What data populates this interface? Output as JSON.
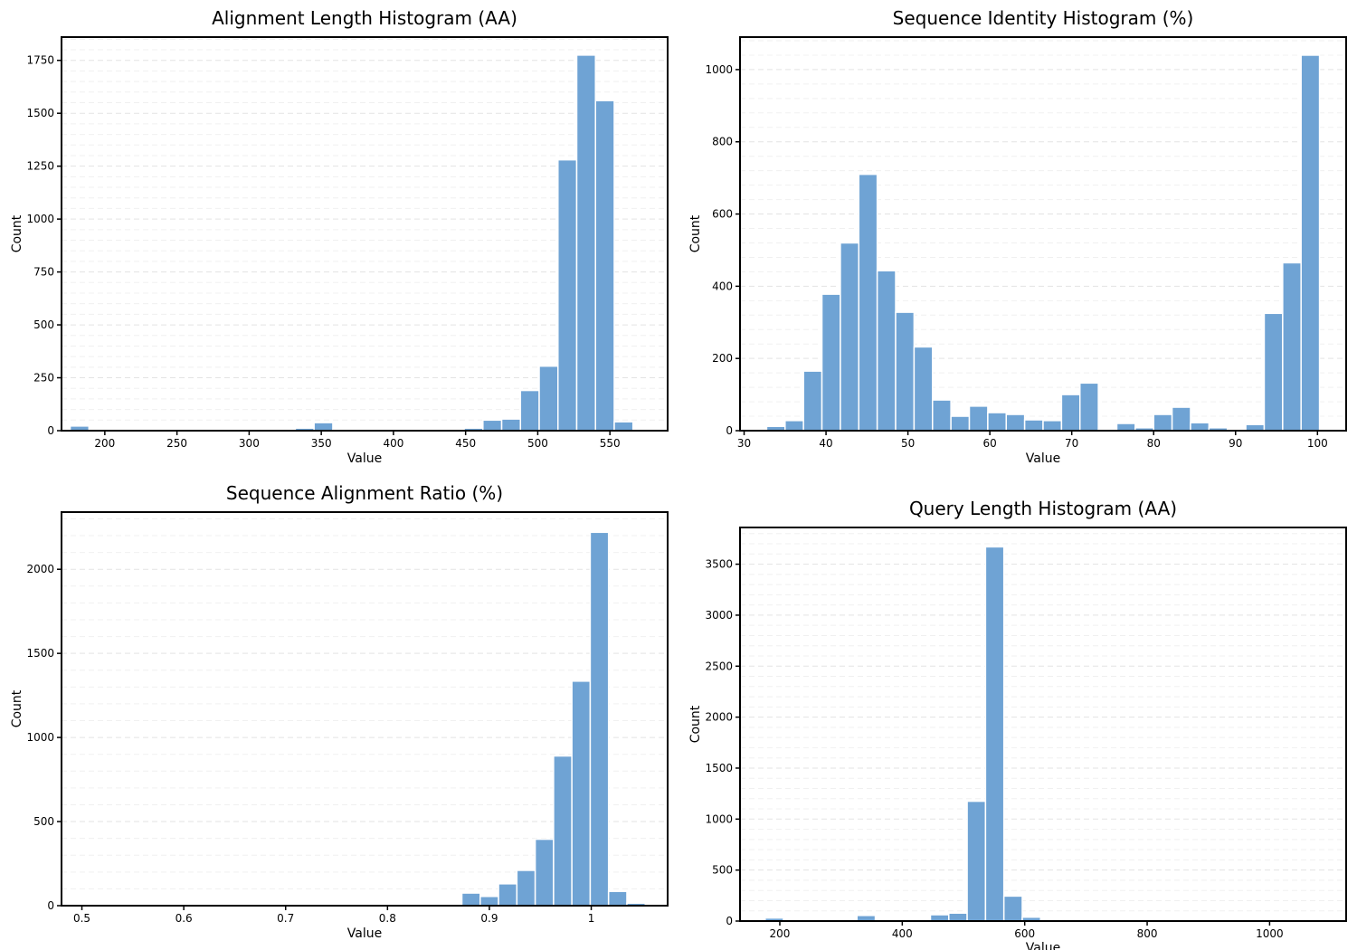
{
  "chart_data": [
    {
      "type": "bar",
      "title": "Alignment Length Histogram (AA)",
      "xlabel": "Value",
      "ylabel": "Count",
      "xlim": [
        170,
        590
      ],
      "ylim": [
        0,
        1860
      ],
      "xticks": [
        200,
        250,
        300,
        350,
        400,
        450,
        500,
        550
      ],
      "yticks": [
        0,
        250,
        500,
        750,
        1000,
        1250,
        1500,
        1750
      ],
      "grid": true,
      "bins": [
        {
          "x0": 176,
          "x1": 189,
          "count": 22
        },
        {
          "x0": 189,
          "x1": 202,
          "count": 2
        },
        {
          "x0": 202,
          "x1": 215,
          "count": 1
        },
        {
          "x0": 215,
          "x1": 228,
          "count": 1
        },
        {
          "x0": 228,
          "x1": 241,
          "count": 1
        },
        {
          "x0": 241,
          "x1": 254,
          "count": 1
        },
        {
          "x0": 254,
          "x1": 267,
          "count": 1
        },
        {
          "x0": 267,
          "x1": 280,
          "count": 1
        },
        {
          "x0": 280,
          "x1": 293,
          "count": 2
        },
        {
          "x0": 293,
          "x1": 306,
          "count": 2
        },
        {
          "x0": 306,
          "x1": 319,
          "count": 2
        },
        {
          "x0": 319,
          "x1": 332,
          "count": 3
        },
        {
          "x0": 332,
          "x1": 345,
          "count": 12
        },
        {
          "x0": 345,
          "x1": 358,
          "count": 38
        },
        {
          "x0": 358,
          "x1": 371,
          "count": 5
        },
        {
          "x0": 371,
          "x1": 384,
          "count": 3
        },
        {
          "x0": 384,
          "x1": 397,
          "count": 2
        },
        {
          "x0": 397,
          "x1": 410,
          "count": 3
        },
        {
          "x0": 410,
          "x1": 423,
          "count": 6
        },
        {
          "x0": 423,
          "x1": 436,
          "count": 5
        },
        {
          "x0": 436,
          "x1": 449,
          "count": 4
        },
        {
          "x0": 449,
          "x1": 462,
          "count": 12
        },
        {
          "x0": 462,
          "x1": 475,
          "count": 50
        },
        {
          "x0": 475,
          "x1": 488,
          "count": 55
        },
        {
          "x0": 488,
          "x1": 501,
          "count": 190
        },
        {
          "x0": 501,
          "x1": 514,
          "count": 305
        },
        {
          "x0": 514,
          "x1": 527,
          "count": 1280
        },
        {
          "x0": 527,
          "x1": 540,
          "count": 1775
        },
        {
          "x0": 540,
          "x1": 553,
          "count": 1560
        },
        {
          "x0": 553,
          "x1": 566,
          "count": 42
        }
      ]
    },
    {
      "type": "bar",
      "title": "Sequence Identity Histogram (%)",
      "xlabel": "Value",
      "ylabel": "Count",
      "xlim": [
        29.5,
        103.5
      ],
      "ylim": [
        0,
        1090
      ],
      "xticks": [
        30,
        40,
        50,
        60,
        70,
        80,
        90,
        100
      ],
      "yticks": [
        0,
        200,
        400,
        600,
        800,
        1000
      ],
      "grid": true,
      "bins": [
        {
          "x0": 30.5,
          "x1": 32.75,
          "count": 2
        },
        {
          "x0": 32.75,
          "x1": 35.0,
          "count": 12
        },
        {
          "x0": 35.0,
          "x1": 37.25,
          "count": 28
        },
        {
          "x0": 37.25,
          "x1": 39.5,
          "count": 165
        },
        {
          "x0": 39.5,
          "x1": 41.75,
          "count": 378
        },
        {
          "x0": 41.75,
          "x1": 44.0,
          "count": 520
        },
        {
          "x0": 44.0,
          "x1": 46.25,
          "count": 710
        },
        {
          "x0": 46.25,
          "x1": 48.5,
          "count": 443
        },
        {
          "x0": 48.5,
          "x1": 50.75,
          "count": 328
        },
        {
          "x0": 50.75,
          "x1": 53.0,
          "count": 232
        },
        {
          "x0": 53.0,
          "x1": 55.25,
          "count": 85
        },
        {
          "x0": 55.25,
          "x1": 57.5,
          "count": 40
        },
        {
          "x0": 57.5,
          "x1": 59.75,
          "count": 68
        },
        {
          "x0": 59.75,
          "x1": 62.0,
          "count": 50
        },
        {
          "x0": 62.0,
          "x1": 64.25,
          "count": 45
        },
        {
          "x0": 64.25,
          "x1": 66.5,
          "count": 30
        },
        {
          "x0": 66.5,
          "x1": 68.75,
          "count": 28
        },
        {
          "x0": 68.75,
          "x1": 71.0,
          "count": 100
        },
        {
          "x0": 71.0,
          "x1": 73.25,
          "count": 132
        },
        {
          "x0": 73.25,
          "x1": 75.5,
          "count": 2
        },
        {
          "x0": 75.5,
          "x1": 77.75,
          "count": 20
        },
        {
          "x0": 77.75,
          "x1": 80.0,
          "count": 8
        },
        {
          "x0": 80.0,
          "x1": 82.25,
          "count": 45
        },
        {
          "x0": 82.25,
          "x1": 84.5,
          "count": 65
        },
        {
          "x0": 84.5,
          "x1": 86.75,
          "count": 22
        },
        {
          "x0": 86.75,
          "x1": 89.0,
          "count": 8
        },
        {
          "x0": 89.0,
          "x1": 91.25,
          "count": 3
        },
        {
          "x0": 91.25,
          "x1": 93.5,
          "count": 17
        },
        {
          "x0": 93.5,
          "x1": 95.75,
          "count": 325
        },
        {
          "x0": 95.75,
          "x1": 98.0,
          "count": 465
        },
        {
          "x0": 98.0,
          "x1": 100.25,
          "count": 1040
        }
      ]
    },
    {
      "type": "bar",
      "title": "Sequence Alignment Ratio (%)",
      "xlabel": "Value",
      "ylabel": "Count",
      "xlim": [
        0.48,
        1.075
      ],
      "ylim": [
        0,
        2340
      ],
      "xticks": [
        0.5,
        0.6,
        0.7,
        0.8,
        0.9,
        1.0
      ],
      "yticks": [
        0,
        500,
        1000,
        1500,
        2000
      ],
      "grid": true,
      "bins": [
        {
          "x0": 0.873,
          "x1": 0.891,
          "count": 75
        },
        {
          "x0": 0.891,
          "x1": 0.909,
          "count": 55
        },
        {
          "x0": 0.909,
          "x1": 0.927,
          "count": 130
        },
        {
          "x0": 0.927,
          "x1": 0.945,
          "count": 210
        },
        {
          "x0": 0.945,
          "x1": 0.963,
          "count": 395
        },
        {
          "x0": 0.963,
          "x1": 0.981,
          "count": 890
        },
        {
          "x0": 0.981,
          "x1": 0.999,
          "count": 1335
        },
        {
          "x0": 0.999,
          "x1": 1.017,
          "count": 2220
        },
        {
          "x0": 1.017,
          "x1": 1.035,
          "count": 85
        },
        {
          "x0": 1.035,
          "x1": 1.053,
          "count": 15
        }
      ]
    },
    {
      "type": "bar",
      "title": "Query Length Histogram (AA)",
      "xlabel": "Value",
      "ylabel": "Count",
      "xlim": [
        135,
        1125
      ],
      "ylim": [
        0,
        3860
      ],
      "xticks": [
        200,
        400,
        600,
        800,
        1000
      ],
      "yticks": [
        0,
        500,
        1000,
        1500,
        2000,
        2500,
        3000,
        3500
      ],
      "grid": true,
      "bins": [
        {
          "x0": 176,
          "x1": 206,
          "count": 30
        },
        {
          "x0": 206,
          "x1": 236,
          "count": 2
        },
        {
          "x0": 236,
          "x1": 266,
          "count": 1
        },
        {
          "x0": 266,
          "x1": 296,
          "count": 1
        },
        {
          "x0": 296,
          "x1": 326,
          "count": 3
        },
        {
          "x0": 326,
          "x1": 356,
          "count": 55
        },
        {
          "x0": 356,
          "x1": 386,
          "count": 3
        },
        {
          "x0": 386,
          "x1": 416,
          "count": 8
        },
        {
          "x0": 416,
          "x1": 446,
          "count": 10
        },
        {
          "x0": 446,
          "x1": 476,
          "count": 62
        },
        {
          "x0": 476,
          "x1": 506,
          "count": 78
        },
        {
          "x0": 506,
          "x1": 536,
          "count": 1175
        },
        {
          "x0": 536,
          "x1": 566,
          "count": 3670
        },
        {
          "x0": 566,
          "x1": 596,
          "count": 245
        },
        {
          "x0": 596,
          "x1": 626,
          "count": 38
        }
      ]
    }
  ]
}
